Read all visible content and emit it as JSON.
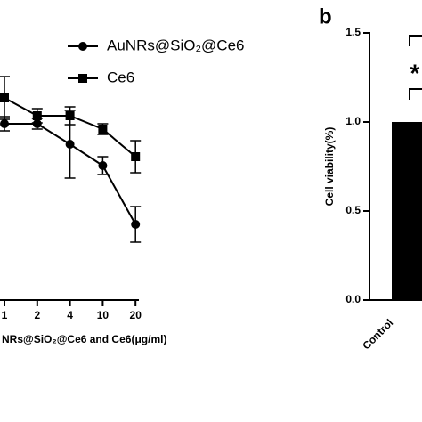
{
  "chart_data": [
    {
      "type": "line",
      "x_label": "NRs@SiO₂@Ce6 and Ce6(μg/ml)",
      "categories": [
        "1",
        "2",
        "4",
        "10",
        "20"
      ],
      "ylim": [
        0,
        1.5
      ],
      "series": [
        {
          "name": "AuNRs@SiO₂@Ce6",
          "color": "#000000",
          "marker": "circle",
          "values": [
            0.99,
            0.99,
            0.875,
            0.755,
            0.425
          ],
          "errors": [
            0.04,
            0.03,
            0.19,
            0.05,
            0.1
          ]
        },
        {
          "name": "Ce6",
          "color": "#000000",
          "marker": "square",
          "values": [
            1.135,
            1.035,
            1.035,
            0.96,
            0.805
          ],
          "errors": [
            0.12,
            0.04,
            0.05,
            0.03,
            0.09
          ]
        }
      ]
    },
    {
      "type": "bar",
      "panel_label": "b",
      "y_label": "Cell viability(%)",
      "categories": [
        "Control"
      ],
      "values": [
        1.0
      ],
      "color": "#000000",
      "ylim": [
        0,
        1.5
      ],
      "yticks": [
        {
          "value": 0,
          "label": "0.0"
        },
        0.5,
        {
          "value": 1,
          "label": "1.0"
        },
        1.5
      ],
      "annotation": "*"
    }
  ]
}
